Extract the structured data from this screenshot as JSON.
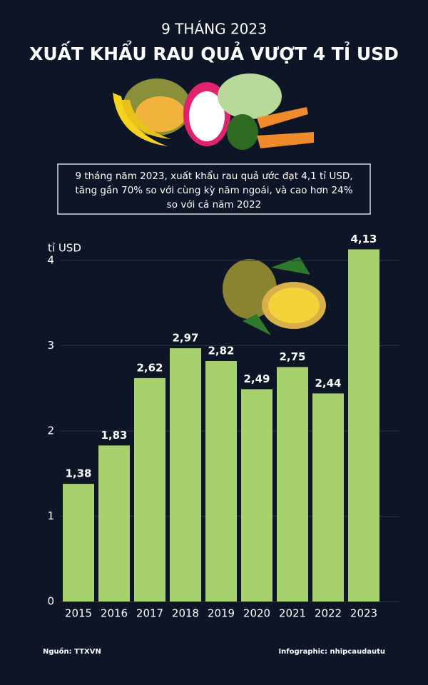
{
  "chart_data": {
    "type": "bar",
    "subtitle": "9 THÁNG 2023",
    "title": "XUẤT KHẨU RAU QUẢ VƯỢT 4 TỈ USD",
    "summary": [
      "9 tháng năm 2023, xuất khẩu rau quả ước đạt 4,1 tỉ USD,",
      "tăng gần 70% so với cùng kỳ năm ngoái, và cao hơn 24%",
      "so với cả năm 2022"
    ],
    "y_label": "tỉ USD",
    "categories": [
      "2015",
      "2016",
      "2017",
      "2018",
      "2019",
      "2020",
      "2021",
      "2022",
      "2023"
    ],
    "values": [
      1.38,
      1.83,
      2.62,
      2.97,
      2.82,
      2.49,
      2.75,
      2.44,
      4.13
    ],
    "value_labels": [
      "1,38",
      "1,83",
      "2,62",
      "2,97",
      "2,82",
      "2,49",
      "2,75",
      "2,44",
      "4,13"
    ],
    "color": "#a7d16f",
    "ylim": [
      0,
      4
    ],
    "yticks": [
      0,
      1,
      2,
      3,
      4
    ],
    "grid": true,
    "source": "Nguồn: TTXVN",
    "credit": "Infographic: nhipcaudautu"
  }
}
